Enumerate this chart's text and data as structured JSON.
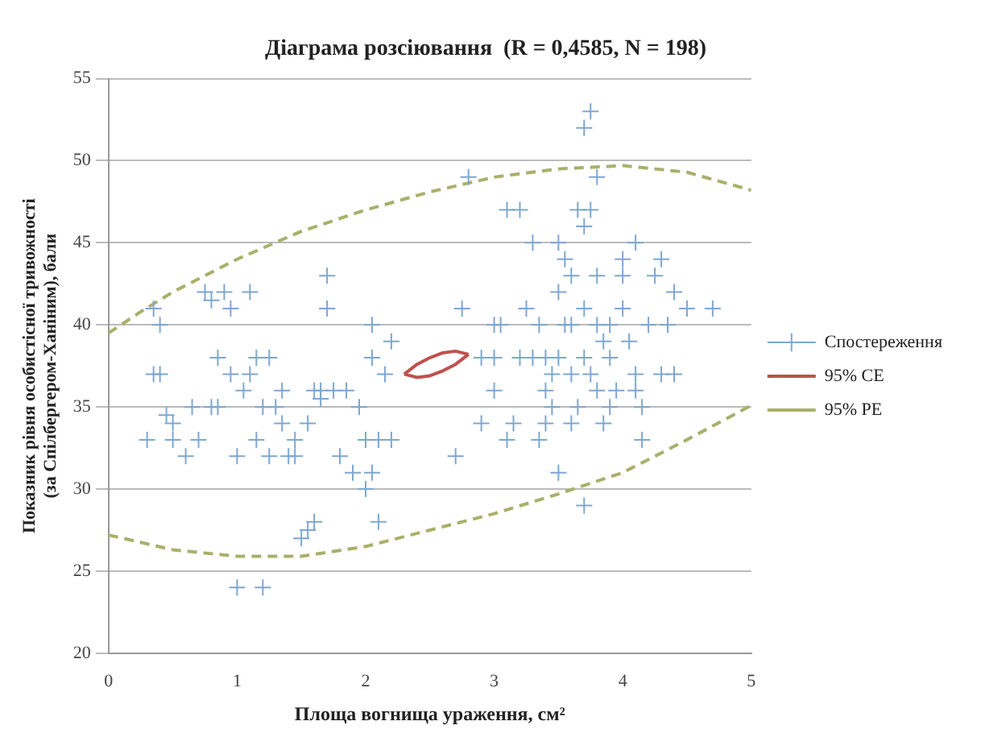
{
  "chart_data": {
    "type": "scatter",
    "title": "Діаграма розсіювання  (R = 0,4585, N = 198)",
    "xlabel": "Площа вогнища ураження, см²",
    "ylabel": "Показник рівня особистісної тривожності (за Спілбергером-Ханіним), бали",
    "xlim": [
      0,
      5
    ],
    "xticks": [
      0,
      1,
      2,
      3,
      4,
      5
    ],
    "ylim": [
      20,
      55
    ],
    "yticks": [
      20,
      25,
      30,
      35,
      40,
      45,
      50,
      55
    ],
    "grid": "y",
    "legend": "right",
    "series": [
      {
        "name": "Спостереження",
        "type": "scatter",
        "marker": "cross",
        "color": "#7fa7d0",
        "x": [
          0.3,
          0.35,
          0.4,
          0.4,
          0.35,
          0.5,
          0.5,
          0.6,
          0.7,
          0.75,
          0.8,
          0.85,
          0.9,
          0.95,
          1.0,
          1.05,
          1.1,
          1.1,
          1.15,
          1.2,
          1.25,
          1.3,
          1.35,
          1.45,
          1.5,
          1.55,
          1.6,
          1.6,
          1.65,
          1.7,
          1.7,
          1.75,
          1.8,
          1.9,
          2.0,
          2.0,
          2.05,
          2.1,
          2.1,
          2.2,
          2.05,
          2.2,
          2.15,
          1.0,
          1.2,
          0.85,
          0.95,
          1.25,
          1.15,
          1.35,
          1.4,
          0.65,
          0.8,
          1.55,
          1.45,
          2.05,
          1.85,
          1.95,
          0.45,
          1.65,
          2.8,
          2.75,
          2.7,
          2.9,
          3.0,
          3.0,
          3.1,
          3.2,
          3.3,
          3.2,
          3.3,
          3.4,
          3.35,
          3.4,
          3.5,
          3.45,
          3.5,
          3.55,
          3.5,
          3.6,
          3.6,
          3.65,
          3.7,
          3.75,
          3.7,
          3.75,
          3.8,
          3.7,
          3.75,
          3.8,
          3.7,
          3.65,
          3.85,
          3.9,
          3.9,
          4.0,
          4.0,
          4.05,
          4.1,
          4.1,
          4.15,
          4.2,
          4.25,
          4.3,
          4.35,
          4.4,
          4.4,
          4.5,
          4.7,
          3.95,
          3.55,
          3.45,
          3.35,
          3.25,
          3.15,
          3.1,
          3.05,
          3.5,
          3.6,
          3.9,
          4.0,
          4.1,
          3.8,
          3.85,
          4.3,
          4.15,
          3.4,
          3.6,
          3.7,
          2.9,
          3.0,
          3.8
        ],
        "values": [
          33,
          37,
          37,
          40,
          41,
          34,
          33,
          32,
          33,
          42,
          41.5,
          35,
          42,
          41,
          32,
          36,
          37,
          42,
          33,
          35,
          32,
          35,
          36,
          32,
          27,
          27.5,
          28,
          36,
          36,
          43,
          41,
          36,
          32,
          31,
          30,
          33,
          31,
          33,
          28,
          33,
          38,
          39,
          37,
          24,
          24,
          38,
          37,
          38,
          38,
          34,
          32,
          35,
          35,
          34,
          33,
          40,
          36,
          35,
          34.5,
          35.5,
          49,
          41,
          32,
          38,
          40,
          36,
          47,
          47,
          45,
          38,
          38,
          38,
          33,
          34,
          31,
          35,
          42,
          44,
          45,
          40,
          43,
          47,
          52,
          53,
          46,
          47,
          49,
          38,
          37,
          36,
          29,
          35,
          34,
          40,
          38,
          41,
          44,
          39,
          37,
          36,
          33,
          40,
          43,
          44,
          40,
          37,
          42,
          41,
          41,
          36,
          40,
          37,
          40,
          41,
          34,
          33,
          40,
          38,
          34,
          35,
          43,
          45,
          43,
          39,
          37,
          35,
          36,
          37,
          41,
          34,
          38,
          40
        ]
      },
      {
        "name": "95% CE",
        "type": "line",
        "line_style": "solid",
        "color": "#c0504d",
        "x": [
          2.3,
          2.4,
          2.5,
          2.6,
          2.7,
          2.8,
          null,
          2.3,
          2.4,
          2.5,
          2.6,
          2.7,
          2.8
        ],
        "values": [
          37.0,
          37.6,
          38.0,
          38.3,
          38.4,
          38.2,
          null,
          37.0,
          36.8,
          36.9,
          37.2,
          37.6,
          38.2
        ]
      },
      {
        "name": "95% PE",
        "type": "line",
        "line_style": "dashed",
        "color": "#a8b06a",
        "x": [
          0,
          0.25,
          0.5,
          1,
          1.5,
          2,
          2.5,
          3,
          3.5,
          4,
          4.5,
          5,
          null,
          0,
          0.5,
          1,
          1.5,
          2,
          2.5,
          3,
          3.5,
          4,
          4.5,
          5
        ],
        "values": [
          39.5,
          40.8,
          42,
          44,
          45.7,
          47,
          48.1,
          49,
          49.5,
          49.7,
          49.3,
          48.2,
          null,
          27.2,
          26.3,
          25.9,
          25.9,
          26.5,
          27.5,
          28.5,
          29.7,
          31,
          33,
          35.1
        ]
      }
    ]
  }
}
